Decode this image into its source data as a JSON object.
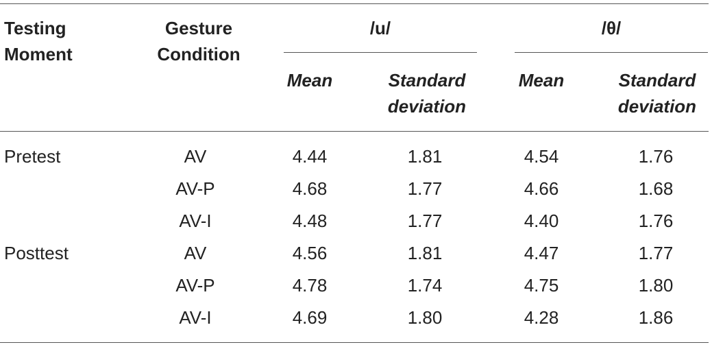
{
  "table": {
    "headers": {
      "testing_moment_line1": "Testing",
      "testing_moment_line2": "Moment",
      "gesture_condition_line1": "Gesture",
      "gesture_condition_line2": "Condition",
      "group_u": "/u/",
      "group_theta": "/θ/",
      "mean": "Mean",
      "sd_line1": "Standard",
      "sd_line2": "deviation"
    },
    "rows": [
      {
        "moment": "Pretest",
        "condition": "AV",
        "u_mean": "4.44",
        "u_sd": "1.81",
        "th_mean": "4.54",
        "th_sd": "1.76"
      },
      {
        "moment": "",
        "condition": "AV-P",
        "u_mean": "4.68",
        "u_sd": "1.77",
        "th_mean": "4.66",
        "th_sd": "1.68"
      },
      {
        "moment": "",
        "condition": "AV-I",
        "u_mean": "4.48",
        "u_sd": "1.77",
        "th_mean": "4.40",
        "th_sd": "1.76"
      },
      {
        "moment": "Posttest",
        "condition": "AV",
        "u_mean": "4.56",
        "u_sd": "1.81",
        "th_mean": "4.47",
        "th_sd": "1.77"
      },
      {
        "moment": "",
        "condition": "AV-P",
        "u_mean": "4.78",
        "u_sd": "1.74",
        "th_mean": "4.75",
        "th_sd": "1.80"
      },
      {
        "moment": "",
        "condition": "AV-I",
        "u_mean": "4.69",
        "u_sd": "1.80",
        "th_mean": "4.28",
        "th_sd": "1.86"
      }
    ]
  }
}
